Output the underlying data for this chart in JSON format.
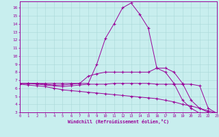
{
  "xlabel": "Windchill (Refroidissement éolien,°C)",
  "xlim": [
    0,
    23
  ],
  "ylim": [
    3,
    16.8
  ],
  "yticks": [
    3,
    4,
    5,
    6,
    7,
    8,
    9,
    10,
    11,
    12,
    13,
    14,
    15,
    16
  ],
  "xticks": [
    0,
    1,
    2,
    3,
    4,
    5,
    6,
    7,
    8,
    9,
    10,
    11,
    12,
    13,
    14,
    15,
    16,
    17,
    18,
    19,
    20,
    21,
    22,
    23
  ],
  "background_color": "#c8eeee",
  "grid_color": "#a8d8d8",
  "line_color": "#990099",
  "lines": [
    {
      "x": [
        0,
        1,
        2,
        3,
        4,
        5,
        6,
        7,
        8,
        9,
        10,
        11,
        12,
        13,
        14,
        15,
        16,
        17,
        18,
        19,
        20,
        21,
        22,
        23
      ],
      "y": [
        6.6,
        6.6,
        6.6,
        6.6,
        6.6,
        6.6,
        6.6,
        6.6,
        6.6,
        9.0,
        12.2,
        14.0,
        16.0,
        16.6,
        15.2,
        13.5,
        8.5,
        8.0,
        6.6,
        4.5,
        3.5,
        2.9,
        2.9,
        2.9
      ]
    },
    {
      "x": [
        0,
        1,
        2,
        3,
        4,
        5,
        6,
        7,
        8,
        9,
        10,
        11,
        12,
        13,
        14,
        15,
        16,
        17,
        18,
        19,
        20,
        21,
        22,
        23
      ],
      "y": [
        6.6,
        6.6,
        6.6,
        6.5,
        6.4,
        6.4,
        6.5,
        6.6,
        7.5,
        7.8,
        8.0,
        8.0,
        8.0,
        8.0,
        8.0,
        8.0,
        8.5,
        8.5,
        8.0,
        6.6,
        4.5,
        3.5,
        3.0,
        2.9
      ]
    },
    {
      "x": [
        0,
        1,
        2,
        3,
        4,
        5,
        6,
        7,
        8,
        9,
        10,
        11,
        12,
        13,
        14,
        15,
        16,
        17,
        18,
        19,
        20,
        21,
        22,
        23
      ],
      "y": [
        6.6,
        6.6,
        6.5,
        6.4,
        6.3,
        6.2,
        6.3,
        6.4,
        6.5,
        6.5,
        6.5,
        6.6,
        6.6,
        6.6,
        6.6,
        6.6,
        6.5,
        6.5,
        6.5,
        6.5,
        6.5,
        6.3,
        3.5,
        2.9
      ]
    },
    {
      "x": [
        0,
        1,
        2,
        3,
        4,
        5,
        6,
        7,
        8,
        9,
        10,
        11,
        12,
        13,
        14,
        15,
        16,
        17,
        18,
        19,
        20,
        21,
        22,
        23
      ],
      "y": [
        6.5,
        6.4,
        6.3,
        6.2,
        6.0,
        5.8,
        5.7,
        5.6,
        5.5,
        5.4,
        5.3,
        5.2,
        5.1,
        5.0,
        4.9,
        4.8,
        4.7,
        4.5,
        4.3,
        4.0,
        3.8,
        3.5,
        3.2,
        2.9
      ]
    }
  ]
}
